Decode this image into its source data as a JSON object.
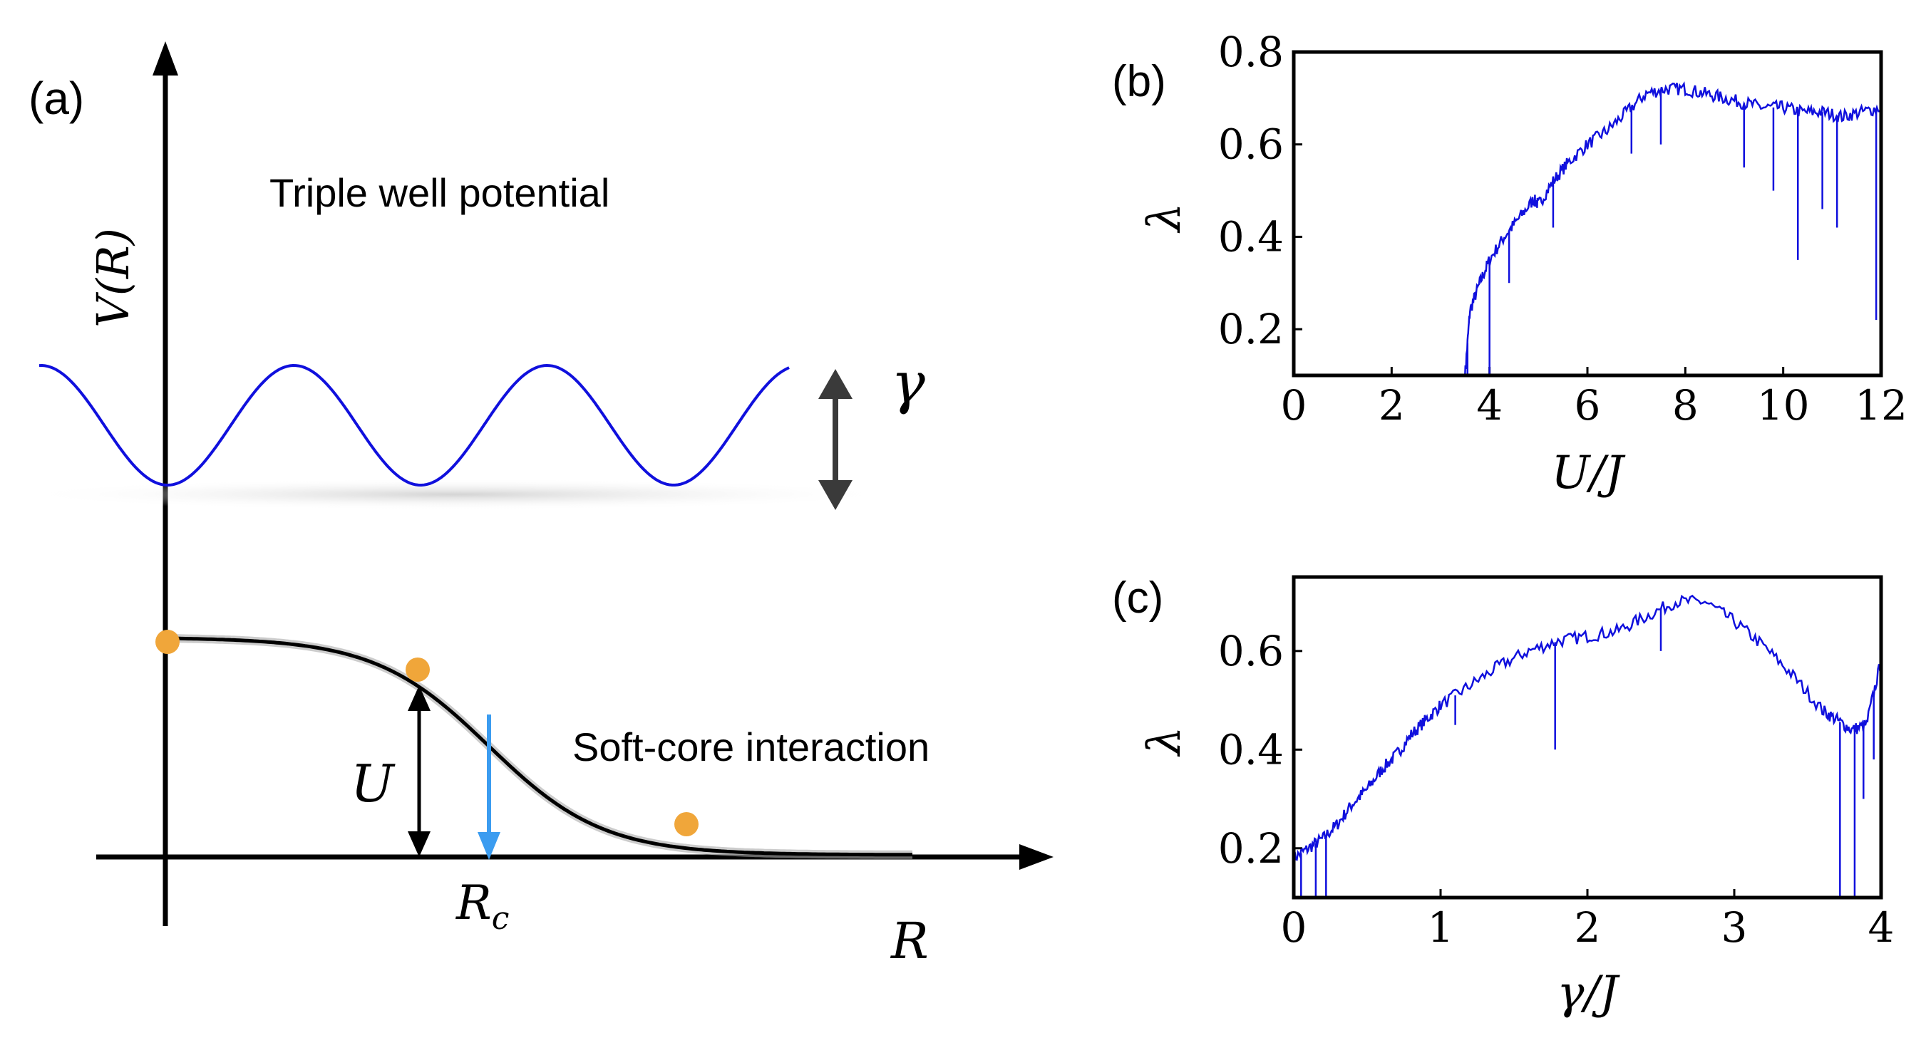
{
  "panel_a": {
    "label": "(a)",
    "y_axis_label": "V(R)",
    "x_axis_label": "R",
    "triple_well_label": "Triple well potential",
    "gamma_symbol": "γ",
    "soft_core_label": "Soft-core interaction",
    "u_symbol": "U",
    "rc_symbol": "R",
    "rc_subscript": "c",
    "colors": {
      "well": "#1010dd",
      "marker": "#f0a63a",
      "rc_arrow": "#3b9cf0",
      "gamma_arrow": "#3a3a3a"
    }
  },
  "chart_data": [
    {
      "type": "line",
      "panel_label": "(b)",
      "xlabel": "U/J",
      "ylabel": "λ",
      "xlim": [
        0,
        12
      ],
      "ylim": [
        0.1,
        0.8
      ],
      "xticks": [
        "0",
        "2",
        "4",
        "6",
        "8",
        "10",
        "12"
      ],
      "yticks": [
        "0.2",
        "0.4",
        "0.6",
        "0.8"
      ],
      "color": "#1010dd",
      "series": [
        {
          "name": "lambda",
          "x": [
            3.5,
            3.6,
            3.8,
            4.0,
            4.3,
            4.6,
            4.9,
            5.0,
            5.3,
            5.6,
            6.0,
            6.4,
            6.8,
            7.2,
            7.6,
            8.0,
            8.4,
            8.8,
            9.2,
            9.6,
            10.0,
            10.4,
            10.8,
            11.2,
            11.6,
            12.0
          ],
          "y": [
            0.1,
            0.24,
            0.3,
            0.35,
            0.4,
            0.44,
            0.48,
            0.47,
            0.52,
            0.56,
            0.6,
            0.63,
            0.67,
            0.71,
            0.72,
            0.72,
            0.71,
            0.7,
            0.69,
            0.68,
            0.68,
            0.67,
            0.67,
            0.66,
            0.67,
            0.68
          ]
        }
      ],
      "dips": [
        {
          "x": 3.55,
          "y": 0.1
        },
        {
          "x": 4.0,
          "y": 0.1
        },
        {
          "x": 4.4,
          "y": 0.3
        },
        {
          "x": 5.3,
          "y": 0.42
        },
        {
          "x": 6.9,
          "y": 0.58
        },
        {
          "x": 7.5,
          "y": 0.6
        },
        {
          "x": 9.2,
          "y": 0.55
        },
        {
          "x": 9.8,
          "y": 0.5
        },
        {
          "x": 10.3,
          "y": 0.35
        },
        {
          "x": 10.8,
          "y": 0.46
        },
        {
          "x": 11.1,
          "y": 0.42
        },
        {
          "x": 11.9,
          "y": 0.22
        }
      ]
    },
    {
      "type": "line",
      "panel_label": "(c)",
      "xlabel": "γ/J",
      "ylabel": "λ",
      "xlim": [
        0,
        4
      ],
      "ylim": [
        0.1,
        0.75
      ],
      "xticks": [
        "0",
        "1",
        "2",
        "3",
        "4"
      ],
      "yticks": [
        "0.2",
        "0.4",
        "0.6"
      ],
      "color": "#1010dd",
      "series": [
        {
          "name": "lambda",
          "x": [
            0.0,
            0.1,
            0.2,
            0.3,
            0.4,
            0.5,
            0.6,
            0.7,
            0.8,
            0.9,
            1.0,
            1.2,
            1.4,
            1.6,
            1.8,
            2.0,
            2.2,
            2.4,
            2.6,
            2.8,
            3.0,
            3.2,
            3.4,
            3.6,
            3.7,
            3.8,
            3.9,
            4.0
          ],
          "y": [
            0.18,
            0.2,
            0.22,
            0.25,
            0.29,
            0.32,
            0.36,
            0.39,
            0.43,
            0.46,
            0.49,
            0.53,
            0.57,
            0.6,
            0.62,
            0.63,
            0.64,
            0.67,
            0.7,
            0.7,
            0.66,
            0.61,
            0.55,
            0.48,
            0.46,
            0.44,
            0.45,
            0.58
          ]
        }
      ],
      "dips": [
        {
          "x": 0.05,
          "y": 0.1
        },
        {
          "x": 0.15,
          "y": 0.1
        },
        {
          "x": 0.22,
          "y": 0.1
        },
        {
          "x": 1.1,
          "y": 0.45
        },
        {
          "x": 1.78,
          "y": 0.4
        },
        {
          "x": 2.5,
          "y": 0.6
        },
        {
          "x": 3.72,
          "y": 0.1
        },
        {
          "x": 3.82,
          "y": 0.1
        },
        {
          "x": 3.88,
          "y": 0.3
        },
        {
          "x": 3.95,
          "y": 0.38
        }
      ]
    }
  ]
}
